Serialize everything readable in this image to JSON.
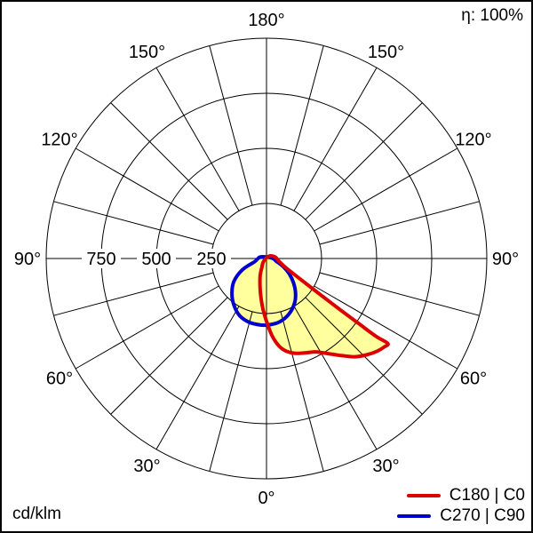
{
  "header": {
    "efficiency": "η: 100%"
  },
  "footer": {
    "unit": "cd/klm"
  },
  "legend": {
    "items": [
      {
        "label": "C180 | C0",
        "color": "#dd0000"
      },
      {
        "label": "C270 | C90",
        "color": "#0000cc"
      }
    ]
  },
  "chart_data": {
    "type": "polar",
    "description": "Luminous intensity distribution curve (polar photometric diagram)",
    "unit": "cd/klm",
    "efficiency_label": "η: 100%",
    "radial_axis": {
      "ticks": [
        750,
        500,
        250
      ],
      "rings": [
        250,
        500,
        750,
        1000
      ],
      "max": 1000
    },
    "angle_grid_step_deg": 15,
    "angle_labels": [
      {
        "text": "180°",
        "theta": 0
      },
      {
        "text": "150°",
        "theta": -30
      },
      {
        "text": "150°",
        "theta": 30
      },
      {
        "text": "120°",
        "theta": -60
      },
      {
        "text": "120°",
        "theta": 60
      },
      {
        "text": "90°",
        "theta": -90
      },
      {
        "text": "90°",
        "theta": 90
      },
      {
        "text": "60°",
        "theta": -120
      },
      {
        "text": "60°",
        "theta": 120
      },
      {
        "text": "30°",
        "theta": -150
      },
      {
        "text": "30°",
        "theta": 150
      },
      {
        "text": "0°",
        "theta": 180
      }
    ],
    "series": [
      {
        "name": "C180 | C0",
        "color": "#dd0000",
        "fill": "#ffff9e",
        "stroke_width": 4,
        "points_gamma_cd": [
          [
            135,
            15
          ],
          [
            100,
            40
          ],
          [
            80,
            55
          ],
          [
            65,
            95
          ],
          [
            59,
            170
          ],
          [
            56.5,
            270
          ],
          [
            55.3,
            390
          ],
          [
            54.8,
            510
          ],
          [
            54.6,
            610
          ],
          [
            55,
            672
          ],
          [
            53,
            668
          ],
          [
            50,
            655
          ],
          [
            46,
            630
          ],
          [
            42,
            600
          ],
          [
            38,
            560
          ],
          [
            33,
            515
          ],
          [
            28,
            480
          ],
          [
            22,
            462
          ],
          [
            17,
            450
          ],
          [
            12,
            430
          ],
          [
            8,
            400
          ],
          [
            4,
            350
          ],
          [
            0,
            285
          ],
          [
            -4,
            230
          ],
          [
            -8,
            180
          ],
          [
            -13,
            130
          ],
          [
            -20,
            85
          ],
          [
            -28,
            45
          ],
          [
            -45,
            18
          ]
        ]
      },
      {
        "name": "C270 | C90",
        "color": "#0000cc",
        "fill": "#ffff9e",
        "stroke_width": 4,
        "points_gamma_cd": [
          [
            -105,
            28
          ],
          [
            -75,
            55
          ],
          [
            -65,
            120
          ],
          [
            -55,
            180
          ],
          [
            -45,
            222
          ],
          [
            -35,
            258
          ],
          [
            -25,
            287
          ],
          [
            -15,
            300
          ],
          [
            -5,
            303
          ],
          [
            3,
            301
          ],
          [
            12,
            293
          ],
          [
            22,
            272
          ],
          [
            32,
            240
          ],
          [
            40,
            205
          ],
          [
            48,
            165
          ],
          [
            56,
            125
          ],
          [
            64,
            85
          ],
          [
            75,
            45
          ],
          [
            95,
            25
          ]
        ]
      }
    ]
  }
}
